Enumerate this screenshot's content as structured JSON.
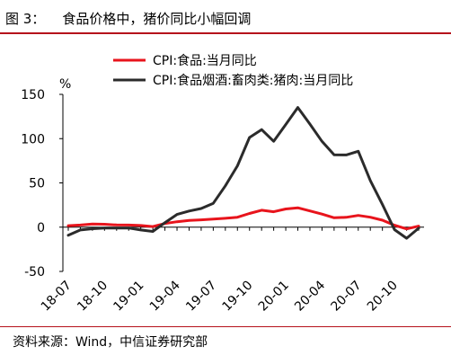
{
  "header": {
    "figure_label": "图 3：",
    "title": "食品价格中，猪价同比小幅回调"
  },
  "source": "资料来源：Wind，中信证券研究部",
  "colors": {
    "accent_rule": "#b5121b"
  },
  "chart_data": {
    "type": "line",
    "ylabel": "%",
    "ylim": [
      -50,
      150
    ],
    "yticks": [
      -50,
      0,
      50,
      100,
      150
    ],
    "xlabels": [
      "18-07",
      "18-10",
      "19-01",
      "19-04",
      "19-07",
      "19-10",
      "20-01",
      "20-04",
      "20-07",
      "20-10"
    ],
    "x": [
      "18-07",
      "18-08",
      "18-09",
      "18-10",
      "18-11",
      "18-12",
      "19-01",
      "19-02",
      "19-03",
      "19-04",
      "19-05",
      "19-06",
      "19-07",
      "19-08",
      "19-09",
      "19-10",
      "19-11",
      "19-12",
      "20-01",
      "20-02",
      "20-03",
      "20-04",
      "20-05",
      "20-06",
      "20-07",
      "20-08",
      "20-09",
      "20-10",
      "20-11",
      "20-12"
    ],
    "grid": false,
    "legend_position": "top",
    "series": [
      {
        "name": "CPI:食品:当月同比",
        "color": "#e8141c",
        "values": [
          1.7,
          2.4,
          3.6,
          3.3,
          2.5,
          2.4,
          1.9,
          0.7,
          4.1,
          6.1,
          7.7,
          8.3,
          9.1,
          10.0,
          11.2,
          15.5,
          19.1,
          17.4,
          20.6,
          21.9,
          18.3,
          14.8,
          10.6,
          11.1,
          13.2,
          11.2,
          7.9,
          2.2,
          -2.0,
          1.2
        ]
      },
      {
        "name": "CPI:食品烟酒:畜肉类:猪肉:当月同比",
        "color": "#2b2b2b",
        "values": [
          -9.2,
          -3.2,
          -1.8,
          -1.0,
          -1.1,
          -1.0,
          -3.2,
          -4.8,
          5.1,
          14.4,
          18.2,
          21.1,
          27.0,
          46.7,
          69.3,
          101.3,
          110.2,
          97.0,
          116.0,
          135.2,
          116.4,
          96.9,
          81.7,
          81.6,
          85.7,
          52.6,
          25.5,
          -2.8,
          -12.5,
          -1.2
        ]
      }
    ]
  }
}
